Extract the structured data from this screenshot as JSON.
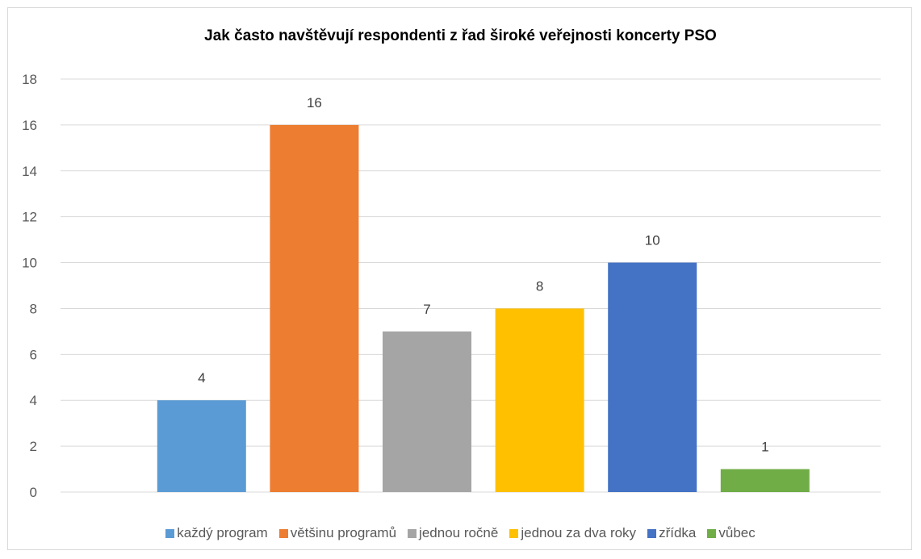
{
  "chart_data": {
    "type": "bar",
    "title": "Jak často navštěvují respondenti z řad široké veřejnosti koncerty PSO",
    "categories": [
      "každý program",
      "většinu programů",
      "jednou ročně",
      "jednou za dva roky",
      "zřídka",
      "vůbec"
    ],
    "values": [
      4,
      16,
      7,
      8,
      10,
      1
    ],
    "colors": [
      "#5b9bd5",
      "#ed7d31",
      "#a5a5a5",
      "#ffc000",
      "#4472c4",
      "#70ad47"
    ],
    "ylim": [
      0,
      18
    ],
    "yticks": [
      0,
      2,
      4,
      6,
      8,
      10,
      12,
      14,
      16,
      18
    ],
    "grid": true,
    "legend_position": "bottom",
    "xlabel": "",
    "ylabel": ""
  }
}
